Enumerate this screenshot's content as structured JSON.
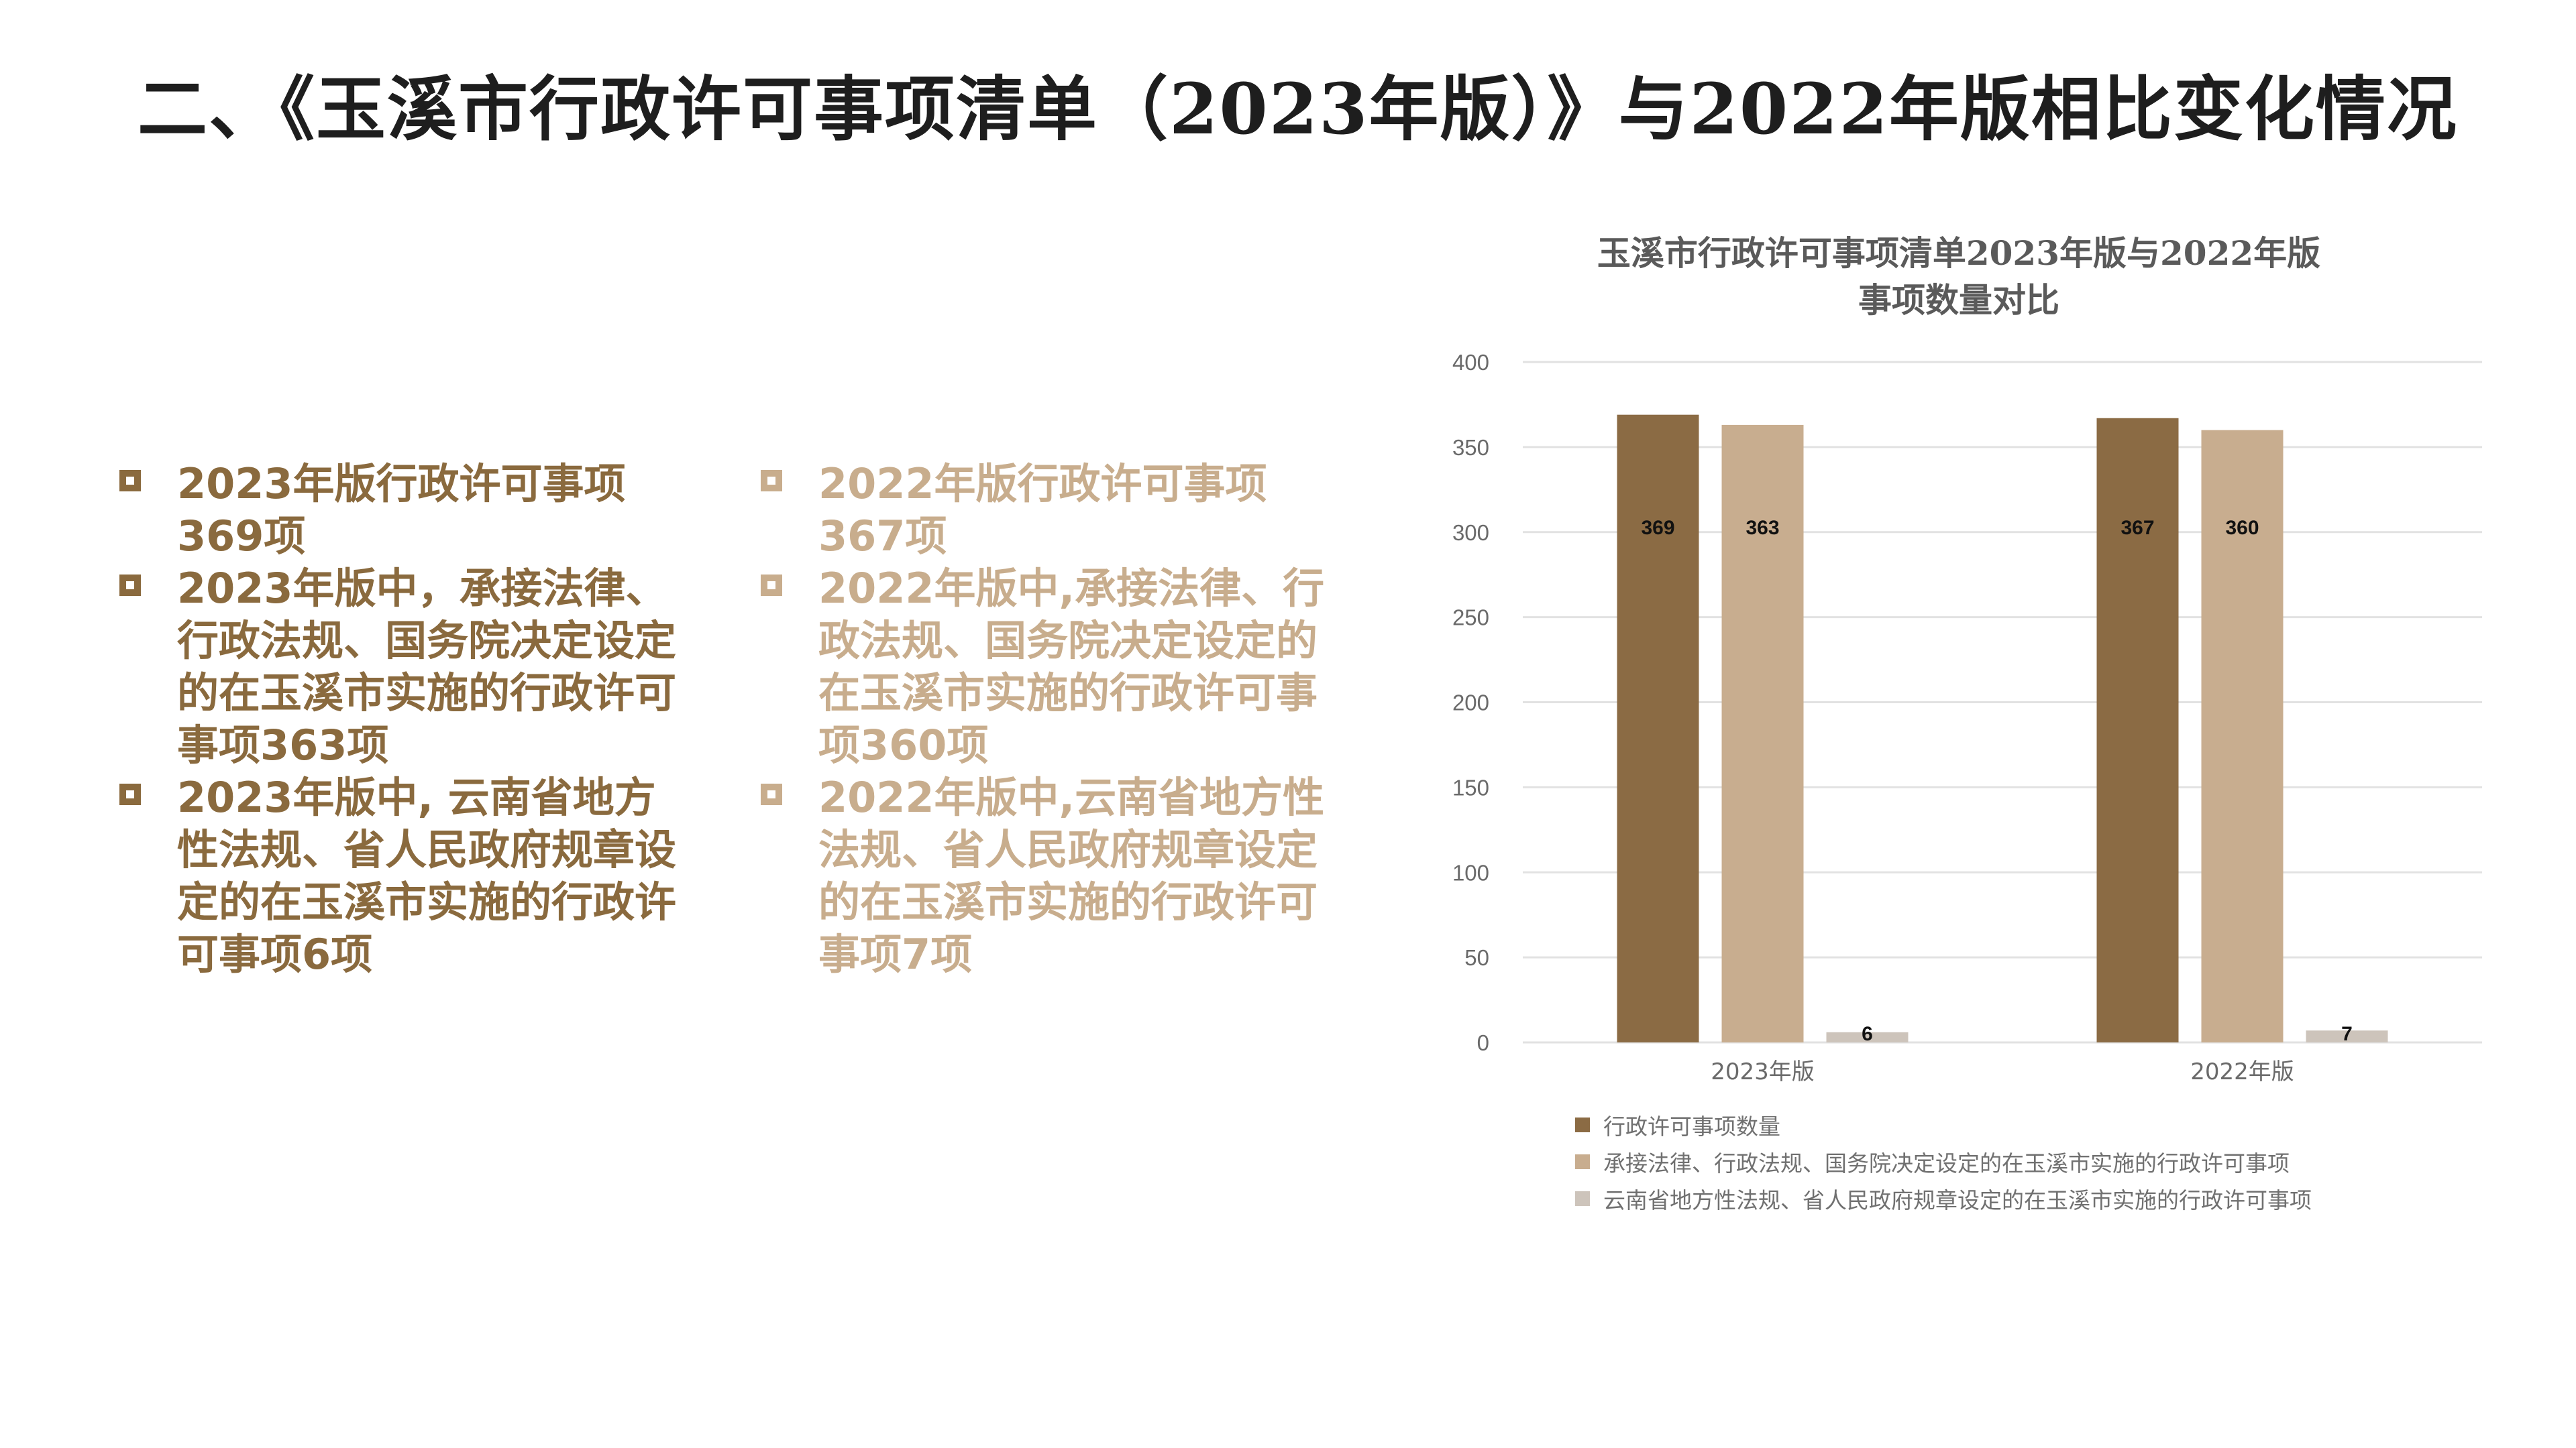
{
  "title": "二、《玉溪市行政许可事项清单（2023年版）》与2022年版相比变化情况",
  "left_column": [
    "2023年版行政许可事项369项",
    "2023年版中，承接法律、行政法规、国务院决定设定的在玉溪市实施的行政许可事项363项",
    "2023年版中, 云南省地方性法规、省人民政府规章设定的在玉溪市实施的行政许可事项6项"
  ],
  "right_column": [
    "2022年版行政许可事项367项",
    "2022年版中,承接法律、行政法规、国务院决定设定的在玉溪市实施的行政许可事项360项",
    "2022年版中,云南省地方性法规、省人民政府规章设定的在玉溪市实施的行政许可事项7项"
  ],
  "colors": {
    "left_text": "#8a6a3e",
    "right_text": "#c8ad8d",
    "series": [
      "#8b6b44",
      "#c8ad8f",
      "#cdc4bb"
    ]
  },
  "chart_data": {
    "type": "bar",
    "title_lines": [
      "玉溪市行政许可事项清单2023年版与2022年版",
      "事项数量对比"
    ],
    "categories": [
      "2023年版",
      "2022年版"
    ],
    "series": [
      {
        "name": "行政许可事项数量",
        "values": [
          369,
          367
        ]
      },
      {
        "name": "承接法律、行政法规、国务院决定设定的在玉溪市实施的行政许可事项",
        "values": [
          363,
          360
        ]
      },
      {
        "name": "云南省地方性法规、省人民政府规章设定的在玉溪市实施的行政许可事项",
        "values": [
          6,
          7
        ]
      }
    ],
    "ylim": [
      0,
      400
    ],
    "yticks": [
      0,
      50,
      100,
      150,
      200,
      250,
      300,
      350,
      400
    ],
    "grid": true,
    "legend_position": "bottom"
  }
}
